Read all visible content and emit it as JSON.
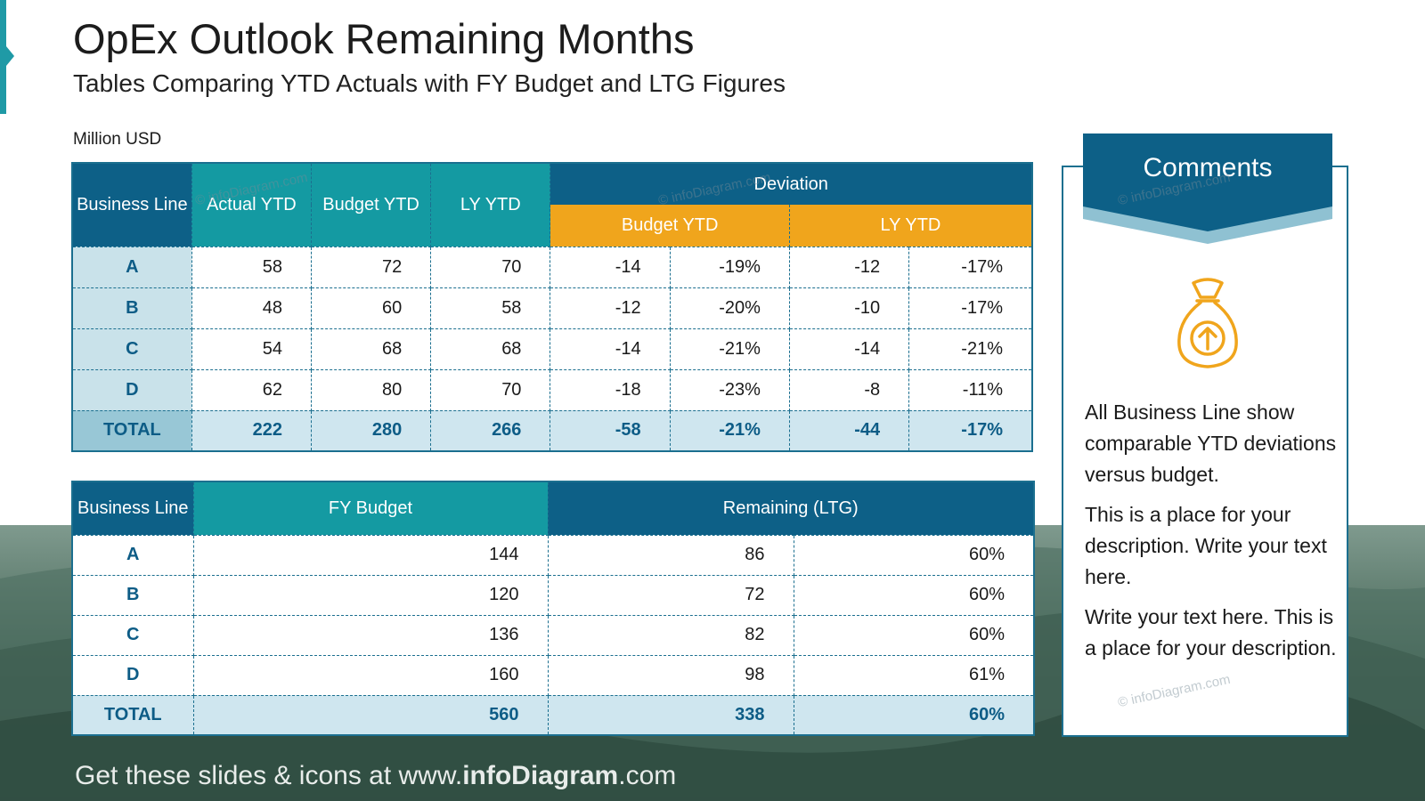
{
  "header": {
    "title": "OpEx Outlook Remaining Months",
    "subtitle": "Tables Comparing YTD Actuals with FY Budget and LTG Figures",
    "units": "Million USD"
  },
  "table1": {
    "headers": {
      "business_line": "Business Line",
      "actual": "Actual YTD",
      "budget": "Budget YTD",
      "ly": "LY YTD",
      "deviation": "Deviation",
      "dev_budget": "Budget YTD",
      "dev_ly": "LY YTD"
    },
    "rows": [
      {
        "label": "A",
        "actual": "58",
        "budget": "72",
        "ly": "70",
        "dev_b_abs": "-14",
        "dev_b_pct": "-19%",
        "dev_ly_abs": "-12",
        "dev_ly_pct": "-17%"
      },
      {
        "label": "B",
        "actual": "48",
        "budget": "60",
        "ly": "58",
        "dev_b_abs": "-12",
        "dev_b_pct": "-20%",
        "dev_ly_abs": "-10",
        "dev_ly_pct": "-17%"
      },
      {
        "label": "C",
        "actual": "54",
        "budget": "68",
        "ly": "68",
        "dev_b_abs": "-14",
        "dev_b_pct": "-21%",
        "dev_ly_abs": "-14",
        "dev_ly_pct": "-21%"
      },
      {
        "label": "D",
        "actual": "62",
        "budget": "80",
        "ly": "70",
        "dev_b_abs": "-18",
        "dev_b_pct": "-23%",
        "dev_ly_abs": "-8",
        "dev_ly_pct": "-11%"
      }
    ],
    "total": {
      "label": "TOTAL",
      "actual": "222",
      "budget": "280",
      "ly": "266",
      "dev_b_abs": "-58",
      "dev_b_pct": "-21%",
      "dev_ly_abs": "-44",
      "dev_ly_pct": "-17%"
    }
  },
  "table2": {
    "headers": {
      "business_line": "Business Line",
      "fy_budget": "FY Budget",
      "remaining": "Remaining (LTG)"
    },
    "rows": [
      {
        "label": "A",
        "fy_budget": "144",
        "remaining": "86",
        "remaining_pct": "60%"
      },
      {
        "label": "B",
        "fy_budget": "120",
        "remaining": "72",
        "remaining_pct": "60%"
      },
      {
        "label": "C",
        "fy_budget": "136",
        "remaining": "82",
        "remaining_pct": "60%"
      },
      {
        "label": "D",
        "fy_budget": "160",
        "remaining": "98",
        "remaining_pct": "61%"
      }
    ],
    "total": {
      "label": "TOTAL",
      "fy_budget": "560",
      "remaining": "338",
      "remaining_pct": "60%"
    }
  },
  "comments": {
    "title": "Comments",
    "icon": "money-bag-up-arrow-icon",
    "paragraphs": [
      "All Business Line show comparable YTD deviations versus budget.",
      "This is a place for your description. Write your text here.",
      "Write your text here. This is a place for your description."
    ]
  },
  "footer": {
    "prefix": "Get these slides & icons at www.",
    "brand": "infoDiagram",
    "suffix": ".com"
  },
  "watermark": "© infoDiagram.com",
  "colors": {
    "navy": "#0d6087",
    "teal": "#149aa2",
    "orange": "#f0a51c",
    "label_bg": "#c9e2ea",
    "total_bg": "#cfe6ef"
  }
}
